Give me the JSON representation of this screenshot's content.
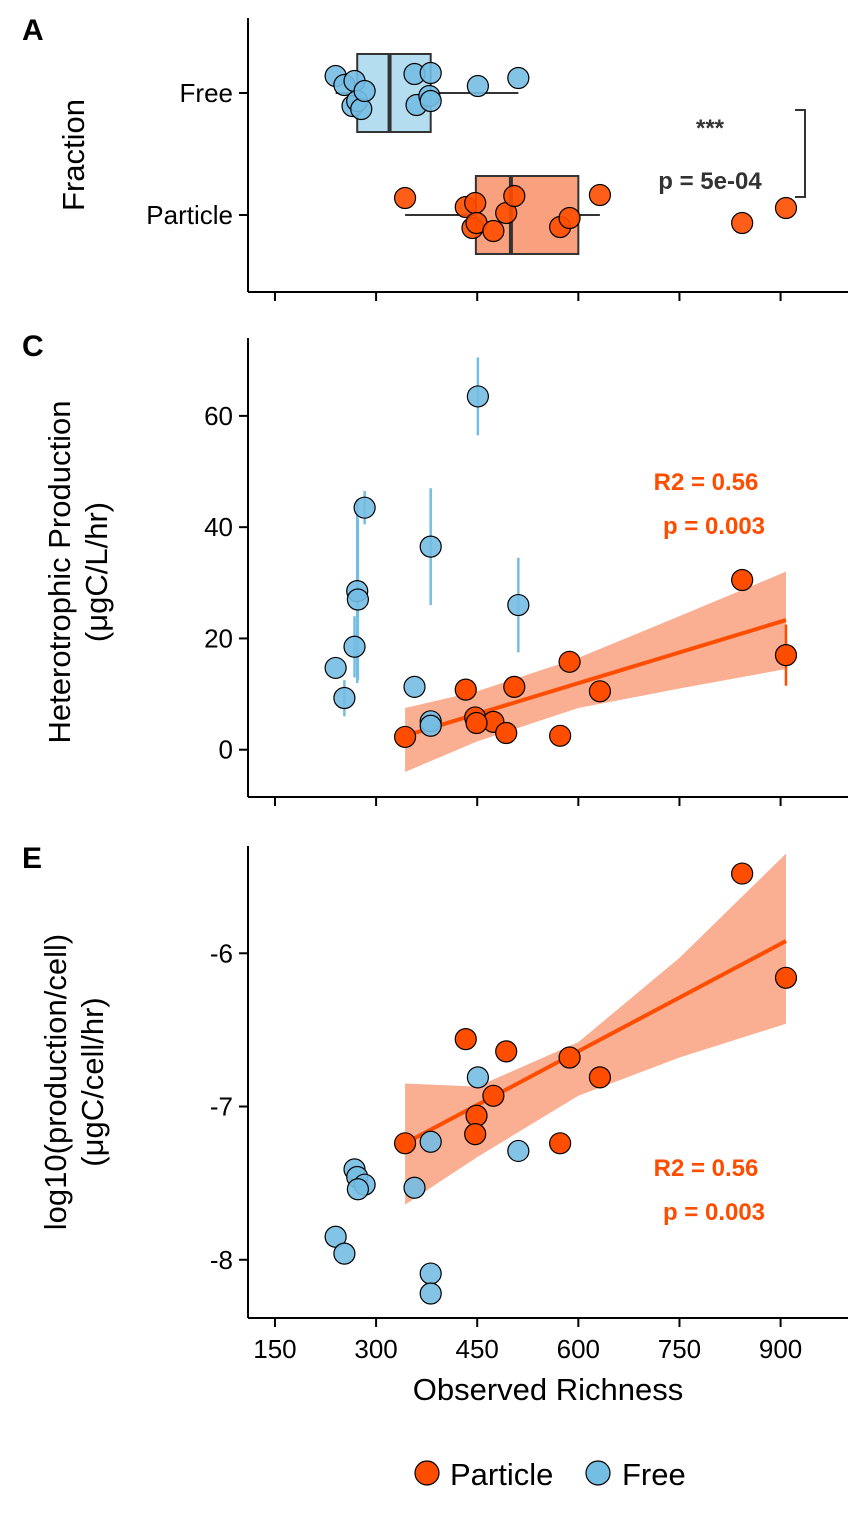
{
  "colors": {
    "particle": "#FF4D00",
    "particle_ci": "#F9A07F",
    "particle_box": "#F9A07F",
    "free": "#74BDE3",
    "free_box": "#B5DDF0",
    "axis": "#000000",
    "stat_panelA": "#333333"
  },
  "x_axis": {
    "label": "Observed Richness",
    "ticks": [
      150,
      300,
      450,
      600,
      750,
      900
    ],
    "tick_labels": [
      "150",
      "300",
      "450",
      "600",
      "750",
      "900"
    ],
    "range": [
      110,
      1000
    ]
  },
  "legend": {
    "items": [
      {
        "label": "Particle",
        "color": "#FF4D00"
      },
      {
        "label": "Free",
        "color": "#74BDE3"
      }
    ]
  },
  "chart_data": [
    {
      "type": "box",
      "panel": "A",
      "ylabel": "Fraction",
      "categories": [
        "Free",
        "Particle"
      ],
      "series": [
        {
          "name": "Free",
          "box": {
            "whisker_low": 240,
            "q1": 272,
            "median": 320,
            "q3": 381,
            "whisker_high": 511
          },
          "points": [
            240,
            253,
            265,
            268,
            272,
            278,
            283,
            357,
            360,
            379,
            381,
            381,
            451,
            511
          ]
        },
        {
          "name": "Particle",
          "box": {
            "whisker_low": 343,
            "q1": 448,
            "median": 500,
            "q3": 600,
            "whisker_high": 632
          },
          "points": [
            343,
            433,
            443,
            447,
            449,
            474,
            493,
            505,
            573,
            587,
            632,
            843,
            908
          ]
        }
      ],
      "annotation": {
        "stars": "***",
        "p_text": "p = 5e-04"
      }
    },
    {
      "type": "scatter",
      "panel": "C",
      "ylabel": [
        "Heterotrophic Production",
        "(μgC/L/hr)"
      ],
      "yticks": [
        0,
        20,
        40,
        60
      ],
      "ylim": [
        -8.5,
        74
      ],
      "free_points": [
        {
          "x": 451,
          "y": 63.5,
          "lo": 56.5,
          "hi": 70.5
        },
        {
          "x": 283,
          "y": 43.5,
          "lo": 40.5,
          "hi": 46.5
        },
        {
          "x": 381,
          "y": 36.5,
          "lo": 26,
          "hi": 47
        },
        {
          "x": 272,
          "y": 28.5,
          "lo": 12,
          "hi": 45
        },
        {
          "x": 273,
          "y": 27,
          "lo": 12.5,
          "hi": 41.5
        },
        {
          "x": 511,
          "y": 26,
          "lo": 17.5,
          "hi": 34.5
        },
        {
          "x": 268,
          "y": 18.5,
          "lo": 13,
          "hi": 24
        },
        {
          "x": 240,
          "y": 14.7
        },
        {
          "x": 357,
          "y": 11.3
        },
        {
          "x": 253,
          "y": 9.3,
          "lo": 6,
          "hi": 12.5
        },
        {
          "x": 381,
          "y": 5.1
        },
        {
          "x": 381,
          "y": 4.3
        }
      ],
      "particle_points": [
        {
          "x": 843,
          "y": 30.5
        },
        {
          "x": 908,
          "y": 17,
          "lo": 11.5,
          "hi": 22.5
        },
        {
          "x": 587,
          "y": 15.8
        },
        {
          "x": 433,
          "y": 10.8
        },
        {
          "x": 505,
          "y": 11.3
        },
        {
          "x": 632,
          "y": 10.5
        },
        {
          "x": 447,
          "y": 5.8
        },
        {
          "x": 474,
          "y": 5
        },
        {
          "x": 449,
          "y": 4.8
        },
        {
          "x": 493,
          "y": 3
        },
        {
          "x": 573,
          "y": 2.5
        },
        {
          "x": 343,
          "y": 2.3
        }
      ],
      "fit": {
        "x": [
          343,
          908
        ],
        "y": [
          2.5,
          23.3
        ]
      },
      "ci_band": {
        "x": [
          343,
          450,
          600,
          750,
          908
        ],
        "upper": [
          7.5,
          10.5,
          16.5,
          24,
          32
        ],
        "lower": [
          -4,
          1.5,
          7.5,
          11,
          14.5
        ]
      },
      "stat": {
        "line1": "R2 = 0.56",
        "line2": "p = 0.003"
      }
    },
    {
      "type": "scatter",
      "panel": "E",
      "ylabel": [
        "log10(production/cell)",
        "(μgC/cell/hr)"
      ],
      "yticks": [
        -6,
        -7,
        -8
      ],
      "ylim": [
        -8.38,
        -5.3
      ],
      "free_points": [
        {
          "x": 511,
          "y": -7.29
        },
        {
          "x": 268,
          "y": -7.41
        },
        {
          "x": 272,
          "y": -7.46
        },
        {
          "x": 283,
          "y": -7.51
        },
        {
          "x": 273,
          "y": -7.54
        },
        {
          "x": 357,
          "y": -7.53
        },
        {
          "x": 240,
          "y": -7.85
        },
        {
          "x": 253,
          "y": -7.96
        },
        {
          "x": 381,
          "y": -8.09
        },
        {
          "x": 381,
          "y": -8.22
        },
        {
          "x": 381,
          "y": -7.23
        },
        {
          "x": 451,
          "y": -6.81
        }
      ],
      "particle_points": [
        {
          "x": 843,
          "y": -5.48
        },
        {
          "x": 908,
          "y": -6.16
        },
        {
          "x": 587,
          "y": -6.68
        },
        {
          "x": 493,
          "y": -6.64
        },
        {
          "x": 433,
          "y": -6.56
        },
        {
          "x": 632,
          "y": -6.81
        },
        {
          "x": 474,
          "y": -6.93
        },
        {
          "x": 449,
          "y": -7.06
        },
        {
          "x": 447,
          "y": -7.18
        },
        {
          "x": 573,
          "y": -7.24
        },
        {
          "x": 343,
          "y": -7.24
        }
      ],
      "fit": {
        "x": [
          343,
          908
        ],
        "y": [
          -7.24,
          -5.92
        ]
      },
      "ci_band": {
        "x": [
          343,
          450,
          600,
          750,
          908
        ],
        "upper": [
          -6.85,
          -6.87,
          -6.58,
          -6.03,
          -5.35
        ],
        "lower": [
          -7.64,
          -7.33,
          -6.93,
          -6.68,
          -6.46
        ]
      },
      "stat": {
        "line1": "R2 = 0.56",
        "line2": "p = 0.003"
      }
    }
  ],
  "panels": {
    "A": {
      "letter": "A"
    },
    "C": {
      "letter": "C"
    },
    "E": {
      "letter": "E"
    }
  }
}
